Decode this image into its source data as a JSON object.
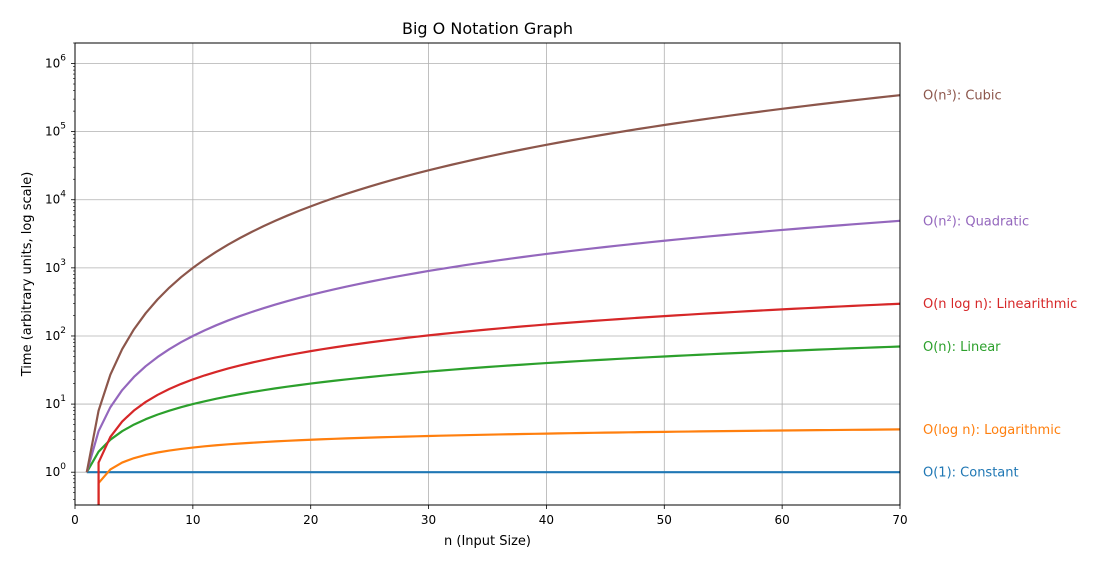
{
  "chart_data": {
    "type": "line",
    "title": "Big O Notation Graph",
    "xlabel": "n (Input Size)",
    "ylabel": "Time (arbitrary units, log scale)",
    "yscale": "log",
    "xlim": [
      0,
      70
    ],
    "ylim": [
      0.33,
      2000000
    ],
    "grid": true,
    "x_ticks": [
      0,
      10,
      20,
      30,
      40,
      50,
      60,
      70
    ],
    "x_tick_labels": [
      "0",
      "10",
      "20",
      "30",
      "40",
      "50",
      "60",
      "70"
    ],
    "y_ticks": [
      1,
      10,
      100,
      1000,
      10000,
      100000,
      1000000
    ],
    "y_tick_labels": [
      {
        "base": "10",
        "exp": "0"
      },
      {
        "base": "10",
        "exp": "1"
      },
      {
        "base": "10",
        "exp": "2"
      },
      {
        "base": "10",
        "exp": "3"
      },
      {
        "base": "10",
        "exp": "4"
      },
      {
        "base": "10",
        "exp": "5"
      },
      {
        "base": "10",
        "exp": "6"
      }
    ],
    "x_range": [
      1,
      70
    ],
    "series": [
      {
        "name": "O(1): Constant",
        "function": "constant",
        "color": "#1f77b4",
        "values": [
          [
            1,
            1
          ],
          [
            70,
            1
          ]
        ]
      },
      {
        "name": "O(log n): Logarithmic",
        "function": "log",
        "color": "#ff7f0e",
        "values": [
          [
            2,
            0.69
          ],
          [
            10,
            2.3
          ],
          [
            30,
            3.4
          ],
          [
            70,
            4.25
          ]
        ]
      },
      {
        "name": "O(n): Linear",
        "function": "linear",
        "color": "#2ca02c",
        "values": [
          [
            1,
            1
          ],
          [
            10,
            10
          ],
          [
            30,
            30
          ],
          [
            70,
            70
          ]
        ]
      },
      {
        "name": "O(n log n): Linearithmic",
        "function": "nlogn",
        "color": "#d62728",
        "values": [
          [
            2,
            1.39
          ],
          [
            10,
            23
          ],
          [
            30,
            102
          ],
          [
            70,
            297
          ]
        ]
      },
      {
        "name": "O(n²): Quadratic",
        "function": "quadratic",
        "color": "#9467bd",
        "values": [
          [
            1,
            1
          ],
          [
            10,
            100
          ],
          [
            30,
            900
          ],
          [
            70,
            4900
          ]
        ]
      },
      {
        "name": "O(n³): Cubic",
        "function": "cubic",
        "color": "#8c564b",
        "values": [
          [
            1,
            1
          ],
          [
            10,
            1000
          ],
          [
            30,
            27000
          ],
          [
            70,
            343000
          ]
        ]
      }
    ]
  }
}
